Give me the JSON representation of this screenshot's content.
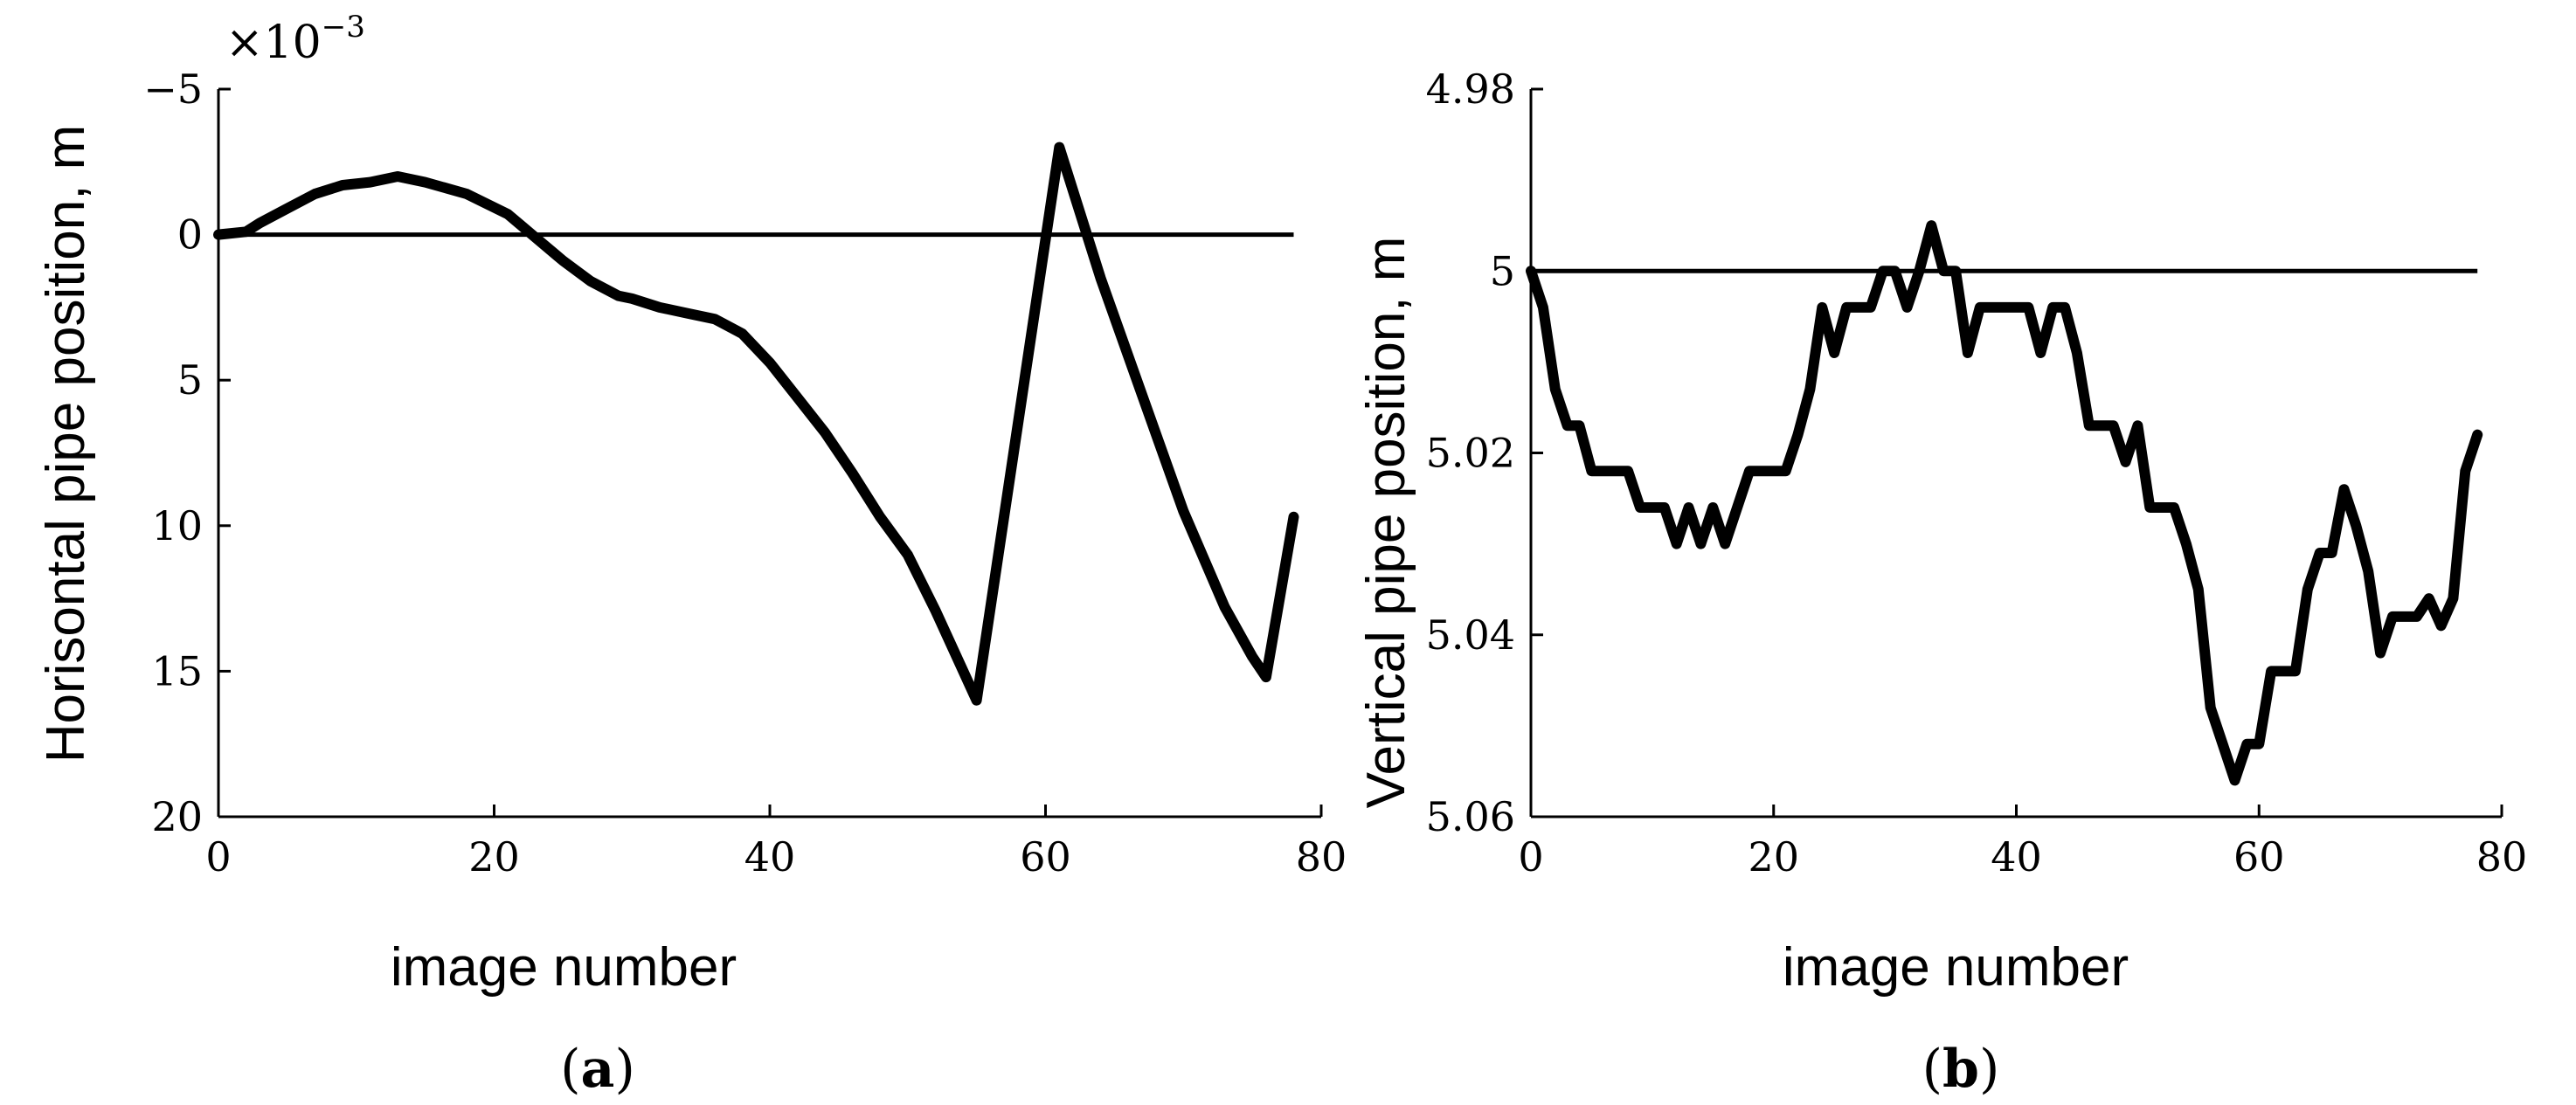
{
  "chart_data": [
    {
      "type": "line",
      "panel_label": "a",
      "xlabel": "image number",
      "ylabel": "Horisontal pipe position, m",
      "y_exponent": "−3",
      "y_reversed": true,
      "xlim": [
        0,
        80
      ],
      "ylim": [
        -5,
        20
      ],
      "x_ticks": [
        0,
        20,
        40,
        60,
        80
      ],
      "x_tick_labels": [
        "0",
        "20",
        "40",
        "60",
        "80"
      ],
      "y_ticks": [
        -5,
        0,
        5,
        10,
        15,
        20
      ],
      "y_tick_labels": [
        "−5",
        "0",
        "5",
        "10",
        "15",
        "20"
      ],
      "series": [
        {
          "x": [
            0,
            2,
            3,
            5,
            7,
            9,
            11,
            13,
            15,
            18,
            21,
            23,
            25,
            27,
            29,
            30,
            32,
            34,
            36,
            38,
            40,
            42,
            44,
            46,
            48,
            50,
            52,
            55,
            61,
            64,
            67,
            70,
            73,
            75,
            76,
            78
          ],
          "values": [
            0,
            -0.1,
            -0.4,
            -0.9,
            -1.4,
            -1.7,
            -1.8,
            -2.0,
            -1.8,
            -1.4,
            -0.7,
            0.1,
            0.9,
            1.6,
            2.1,
            2.2,
            2.5,
            2.7,
            2.9,
            3.4,
            4.4,
            5.6,
            6.8,
            8.2,
            9.7,
            11.0,
            12.9,
            16.0,
            -3.0,
            1.5,
            5.5,
            9.5,
            12.8,
            14.5,
            15.2,
            9.7
          ]
        },
        {
          "x": [
            0,
            78
          ],
          "values": [
            0,
            0
          ]
        }
      ]
    },
    {
      "type": "line",
      "panel_label": "b",
      "xlabel": "image number",
      "ylabel": "Vertical pipe position, m",
      "y_reversed": true,
      "xlim": [
        0,
        80
      ],
      "ylim": [
        4.98,
        5.06
      ],
      "x_ticks": [
        0,
        20,
        40,
        60,
        80
      ],
      "x_tick_labels": [
        "0",
        "20",
        "40",
        "60",
        "80"
      ],
      "y_ticks": [
        4.98,
        5.0,
        5.02,
        5.04,
        5.06
      ],
      "y_tick_labels": [
        "4.98",
        "5",
        "5.02",
        "5.04",
        "5.06"
      ],
      "series": [
        {
          "x": [
            0,
            1,
            2,
            3,
            4,
            5,
            6,
            7,
            8,
            9,
            10,
            11,
            12,
            13,
            14,
            15,
            16,
            17,
            18,
            19,
            20,
            21,
            22,
            23,
            24,
            25,
            26,
            27,
            28,
            29,
            30,
            31,
            32,
            33,
            34,
            35,
            36,
            37,
            38,
            39,
            40,
            41,
            42,
            43,
            44,
            45,
            46,
            47,
            48,
            49,
            50,
            51,
            52,
            53,
            54,
            55,
            56,
            57,
            58,
            59,
            60,
            61,
            62,
            63,
            64,
            65,
            66,
            67,
            68,
            69,
            70,
            71,
            72,
            73,
            74,
            75,
            76,
            77,
            78
          ],
          "values": [
            5.0,
            5.004,
            5.013,
            5.017,
            5.017,
            5.022,
            5.022,
            5.022,
            5.022,
            5.026,
            5.026,
            5.026,
            5.03,
            5.026,
            5.03,
            5.026,
            5.03,
            5.026,
            5.022,
            5.022,
            5.022,
            5.022,
            5.018,
            5.013,
            5.004,
            5.009,
            5.004,
            5.004,
            5.004,
            5.0,
            5.0,
            5.004,
            5.0,
            4.995,
            5.0,
            5.0,
            5.009,
            5.004,
            5.004,
            5.004,
            5.004,
            5.004,
            5.009,
            5.004,
            5.004,
            5.009,
            5.017,
            5.017,
            5.017,
            5.021,
            5.017,
            5.026,
            5.026,
            5.026,
            5.03,
            5.035,
            5.048,
            5.052,
            5.056,
            5.052,
            5.052,
            5.044,
            5.044,
            5.044,
            5.035,
            5.031,
            5.031,
            5.024,
            5.028,
            5.033,
            5.042,
            5.038,
            5.038,
            5.038,
            5.036,
            5.039,
            5.036,
            5.022,
            5.018
          ]
        },
        {
          "x": [
            0,
            78
          ],
          "values": [
            5.0,
            5.0
          ]
        }
      ]
    }
  ]
}
